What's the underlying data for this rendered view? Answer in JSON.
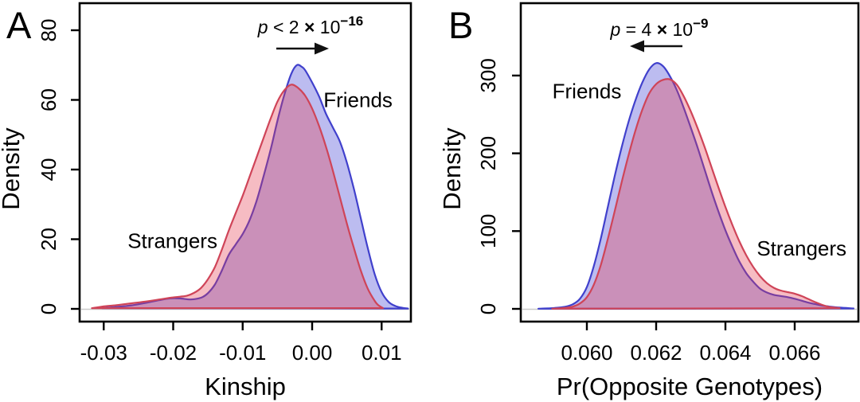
{
  "colors": {
    "friends_stroke": "#4040cc",
    "friends_fill": "rgba(80,80,215,0.38)",
    "friends_label": "#2626dd",
    "strangers_stroke": "#cf4458",
    "strangers_fill": "rgba(228,60,80,0.34)",
    "strangers_label": "#e02222",
    "axis": "#000000",
    "baseline": "#c9c9c9"
  },
  "chart_data": [
    {
      "type": "area",
      "panel_label": "A",
      "title": "",
      "xlabel": "Kinship",
      "ylabel": "Density",
      "xlim": [
        -0.0335,
        0.0142
      ],
      "ylim": [
        0,
        88
      ],
      "grid": false,
      "x_ticks": [
        -0.03,
        -0.02,
        -0.01,
        0.0,
        0.01
      ],
      "x_tick_labels": [
        "-0.03",
        "-0.02",
        "-0.01",
        "0.00",
        "0.01"
      ],
      "y_ticks": [
        0,
        20,
        40,
        60,
        80
      ],
      "y_tick_labels": [
        "0",
        "20",
        "40",
        "60",
        "80"
      ],
      "annotation": {
        "sym": "p",
        "rel": " < 2 ",
        "times": "×",
        "base": " 10",
        "exp": "−16",
        "arrow": "right"
      },
      "series": [
        {
          "name": "Friends",
          "role": "friends",
          "label_pos": [
            0.0066,
            60
          ],
          "points": [
            [
              -0.0302,
              0.2
            ],
            [
              -0.028,
              0.6
            ],
            [
              -0.026,
              1.0
            ],
            [
              -0.024,
              1.7
            ],
            [
              -0.022,
              2.5
            ],
            [
              -0.0205,
              3.0
            ],
            [
              -0.019,
              3.0
            ],
            [
              -0.0175,
              2.7
            ],
            [
              -0.016,
              3.2
            ],
            [
              -0.015,
              4.5
            ],
            [
              -0.014,
              7
            ],
            [
              -0.013,
              11
            ],
            [
              -0.012,
              15.5
            ],
            [
              -0.011,
              18.5
            ],
            [
              -0.01,
              21.5
            ],
            [
              -0.009,
              25.5
            ],
            [
              -0.008,
              31
            ],
            [
              -0.007,
              38
            ],
            [
              -0.006,
              45.5
            ],
            [
              -0.005,
              54
            ],
            [
              -0.004,
              61.5
            ],
            [
              -0.003,
              67.5
            ],
            [
              -0.0022,
              70
            ],
            [
              -0.0015,
              69.5
            ],
            [
              -0.001,
              68.5
            ],
            [
              0,
              65
            ],
            [
              0.001,
              61
            ],
            [
              0.002,
              56
            ],
            [
              0.003,
              52
            ],
            [
              0.004,
              48
            ],
            [
              0.005,
              42
            ],
            [
              0.006,
              34.5
            ],
            [
              0.007,
              26
            ],
            [
              0.008,
              17.5
            ],
            [
              0.009,
              10
            ],
            [
              0.01,
              4.8
            ],
            [
              0.011,
              2
            ],
            [
              0.012,
              0.8
            ],
            [
              0.013,
              0.3
            ],
            [
              0.0138,
              0.1
            ]
          ]
        },
        {
          "name": "Strangers",
          "role": "strangers",
          "label_pos": [
            -0.0201,
            19.5
          ],
          "points": [
            [
              -0.0317,
              0.2
            ],
            [
              -0.03,
              0.7
            ],
            [
              -0.028,
              1.1
            ],
            [
              -0.026,
              1.6
            ],
            [
              -0.024,
              2.1
            ],
            [
              -0.022,
              2.7
            ],
            [
              -0.02,
              3.3
            ],
            [
              -0.019,
              3.5
            ],
            [
              -0.018,
              3.8
            ],
            [
              -0.017,
              4.6
            ],
            [
              -0.016,
              6
            ],
            [
              -0.015,
              8.5
            ],
            [
              -0.014,
              12
            ],
            [
              -0.013,
              17
            ],
            [
              -0.012,
              22.5
            ],
            [
              -0.011,
              27.5
            ],
            [
              -0.01,
              32.5
            ],
            [
              -0.009,
              38
            ],
            [
              -0.008,
              43.5
            ],
            [
              -0.007,
              49
            ],
            [
              -0.006,
              54.5
            ],
            [
              -0.005,
              59.5
            ],
            [
              -0.004,
              62.8
            ],
            [
              -0.003,
              64.4
            ],
            [
              -0.002,
              63.4
            ],
            [
              -0.001,
              61.2
            ],
            [
              0,
              57.5
            ],
            [
              0.001,
              52.5
            ],
            [
              0.002,
              46.5
            ],
            [
              0.003,
              39.5
            ],
            [
              0.004,
              32
            ],
            [
              0.005,
              24.5
            ],
            [
              0.006,
              17.5
            ],
            [
              0.007,
              11
            ],
            [
              0.008,
              5.8
            ],
            [
              0.009,
              2.3
            ],
            [
              0.0095,
              1.1
            ],
            [
              0.0102,
              0.2
            ]
          ]
        }
      ]
    },
    {
      "type": "area",
      "panel_label": "B",
      "title": "",
      "xlabel": "Pr(Opposite Genotypes)",
      "ylabel": "Density",
      "xlim": [
        0.0581,
        0.0678
      ],
      "ylim": [
        0,
        390
      ],
      "grid": false,
      "x_ticks": [
        0.06,
        0.062,
        0.064,
        0.066
      ],
      "x_tick_labels": [
        "0.060",
        "0.062",
        "0.064",
        "0.066"
      ],
      "y_ticks": [
        0,
        100,
        200,
        300
      ],
      "y_tick_labels": [
        "0",
        "100",
        "200",
        "300"
      ],
      "annotation": {
        "sym": "p",
        "rel": " = 4 ",
        "times": "×",
        "base": " 10",
        "exp": "−9",
        "arrow": "left"
      },
      "series": [
        {
          "name": "Friends",
          "role": "friends",
          "label_pos": [
            0.06,
            280
          ],
          "points": [
            [
              0.0586,
              0.2
            ],
            [
              0.0588,
              0.5
            ],
            [
              0.059,
              0.9
            ],
            [
              0.0592,
              1.6
            ],
            [
              0.0594,
              3
            ],
            [
              0.0596,
              6
            ],
            [
              0.0598,
              13
            ],
            [
              0.06,
              28
            ],
            [
              0.0602,
              55
            ],
            [
              0.0604,
              90
            ],
            [
              0.0606,
              130
            ],
            [
              0.0608,
              170
            ],
            [
              0.061,
              207
            ],
            [
              0.0612,
              240
            ],
            [
              0.0614,
              268
            ],
            [
              0.0616,
              291
            ],
            [
              0.0618,
              308
            ],
            [
              0.062,
              316
            ],
            [
              0.0622,
              312
            ],
            [
              0.0624,
              299
            ],
            [
              0.0626,
              281
            ],
            [
              0.0628,
              258
            ],
            [
              0.063,
              233
            ],
            [
              0.0632,
              207
            ],
            [
              0.0634,
              179
            ],
            [
              0.0636,
              151
            ],
            [
              0.0638,
              125
            ],
            [
              0.064,
              101
            ],
            [
              0.0642,
              80
            ],
            [
              0.0644,
              61
            ],
            [
              0.0646,
              46
            ],
            [
              0.0648,
              35
            ],
            [
              0.065,
              26
            ],
            [
              0.0652,
              21
            ],
            [
              0.0654,
              18
            ],
            [
              0.0656,
              16.5
            ],
            [
              0.0658,
              15
            ],
            [
              0.066,
              13
            ],
            [
              0.0662,
              10.5
            ],
            [
              0.0664,
              8
            ],
            [
              0.0666,
              6
            ],
            [
              0.0668,
              4.2
            ],
            [
              0.067,
              3
            ],
            [
              0.0673,
              1.6
            ],
            [
              0.0677,
              0.5
            ]
          ]
        },
        {
          "name": "Strangers",
          "role": "strangers",
          "label_pos": [
            0.0662,
            78
          ],
          "points": [
            [
              0.059,
              0.2
            ],
            [
              0.0592,
              0.6
            ],
            [
              0.0594,
              1.4
            ],
            [
              0.0596,
              3
            ],
            [
              0.0598,
              7
            ],
            [
              0.06,
              15
            ],
            [
              0.0602,
              31
            ],
            [
              0.0604,
              56
            ],
            [
              0.0606,
              89
            ],
            [
              0.0608,
              125
            ],
            [
              0.061,
              162
            ],
            [
              0.0612,
              197
            ],
            [
              0.0614,
              229
            ],
            [
              0.0616,
              256
            ],
            [
              0.0618,
              277
            ],
            [
              0.062,
              289
            ],
            [
              0.0622,
              294.5
            ],
            [
              0.0624,
              295
            ],
            [
              0.0626,
              288
            ],
            [
              0.0628,
              273
            ],
            [
              0.063,
              254
            ],
            [
              0.0632,
              232
            ],
            [
              0.0634,
              208
            ],
            [
              0.0636,
              182
            ],
            [
              0.0638,
              156
            ],
            [
              0.064,
              131
            ],
            [
              0.0642,
              108
            ],
            [
              0.0644,
              87
            ],
            [
              0.0646,
              69
            ],
            [
              0.0648,
              54
            ],
            [
              0.065,
              42
            ],
            [
              0.0652,
              33
            ],
            [
              0.0654,
              27
            ],
            [
              0.0656,
              23.5
            ],
            [
              0.0658,
              21.5
            ],
            [
              0.066,
              19.5
            ],
            [
              0.0662,
              16.5
            ],
            [
              0.0664,
              12.5
            ],
            [
              0.0666,
              8.5
            ],
            [
              0.0668,
              5
            ],
            [
              0.067,
              2.5
            ],
            [
              0.0673,
              0.8
            ]
          ]
        }
      ]
    }
  ]
}
